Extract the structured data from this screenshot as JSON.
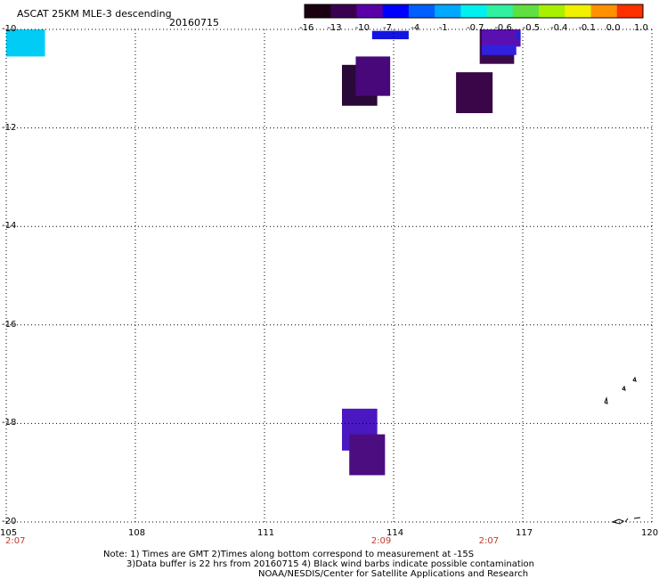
{
  "header": {
    "title": "ASCAT 25KM MLE-3 descending",
    "date": "20160715"
  },
  "colorbar": {
    "labels": [
      "-16",
      "-13",
      "-10",
      "-7",
      "-4",
      "-1",
      "-0.7",
      "-0.6",
      "-0.5",
      "-0.4",
      "-0.1",
      "0.0",
      "1.0"
    ],
    "colors": [
      "#1a0010",
      "#3a0050",
      "#5a00a8",
      "#0000ff",
      "#0060ff",
      "#00a8ff",
      "#00f0f0",
      "#30f0a0",
      "#60e040",
      "#a8f000",
      "#f0f000",
      "#ff9000",
      "#ff3000"
    ]
  },
  "map": {
    "lat_labels": [
      "-10",
      "-12",
      "-14",
      "-16",
      "-18",
      "-20"
    ],
    "lon_labels": [
      "105",
      "108",
      "111",
      "114",
      "117",
      "120"
    ],
    "times": [
      {
        "label": "2:07",
        "lon": 105
      },
      {
        "label": "2:09",
        "lon": 113.5
      },
      {
        "label": "2:07",
        "lon": 116
      }
    ],
    "cells": [
      {
        "lon0": 105.0,
        "lon1": 105.9,
        "lat0": -10.0,
        "lat1": -10.55,
        "color": "#00ccf5"
      },
      {
        "lon0": 113.5,
        "lon1": 114.35,
        "lat0": -10.03,
        "lat1": -10.2,
        "color": "#1414e0"
      },
      {
        "lon0": 116.0,
        "lon1": 116.8,
        "lat0": -10.0,
        "lat1": -10.7,
        "color": "#3b0a4a"
      },
      {
        "lon0": 116.05,
        "lon1": 116.95,
        "lat0": -10.0,
        "lat1": -10.35,
        "color": "#5a10b0"
      },
      {
        "lon0": 116.05,
        "lon1": 116.85,
        "lat0": -10.32,
        "lat1": -10.52,
        "color": "#3020e0"
      },
      {
        "lon0": 116.85,
        "lon1": 116.95,
        "lat0": -10.05,
        "lat1": -10.2,
        "color": "#2020d0"
      },
      {
        "lon0": 112.8,
        "lon1": 113.62,
        "lat0": -10.72,
        "lat1": -11.55,
        "color": "#2a0838"
      },
      {
        "lon0": 113.12,
        "lon1": 113.92,
        "lat0": -10.55,
        "lat1": -11.35,
        "color": "#48087a"
      },
      {
        "lon0": 115.45,
        "lon1": 116.3,
        "lat0": -10.87,
        "lat1": -11.7,
        "color": "#3a0648"
      },
      {
        "lon0": 112.8,
        "lon1": 113.62,
        "lat0": -17.7,
        "lat1": -18.55,
        "color": "#4a18c0"
      },
      {
        "lon0": 112.97,
        "lon1": 113.8,
        "lat0": -18.22,
        "lat1": -19.05,
        "color": "#4c0d80"
      }
    ]
  },
  "notes": {
    "line1": "Note: 1) Times are GMT 2)Times along bottom correspond to measurement at -15S",
    "line2": "3)Data buffer is 22 hrs from 20160715 4) Black wind barbs indicate possible contamination",
    "line3": "NOAA/NESDIS/Center for Satellite Applications and Research"
  }
}
